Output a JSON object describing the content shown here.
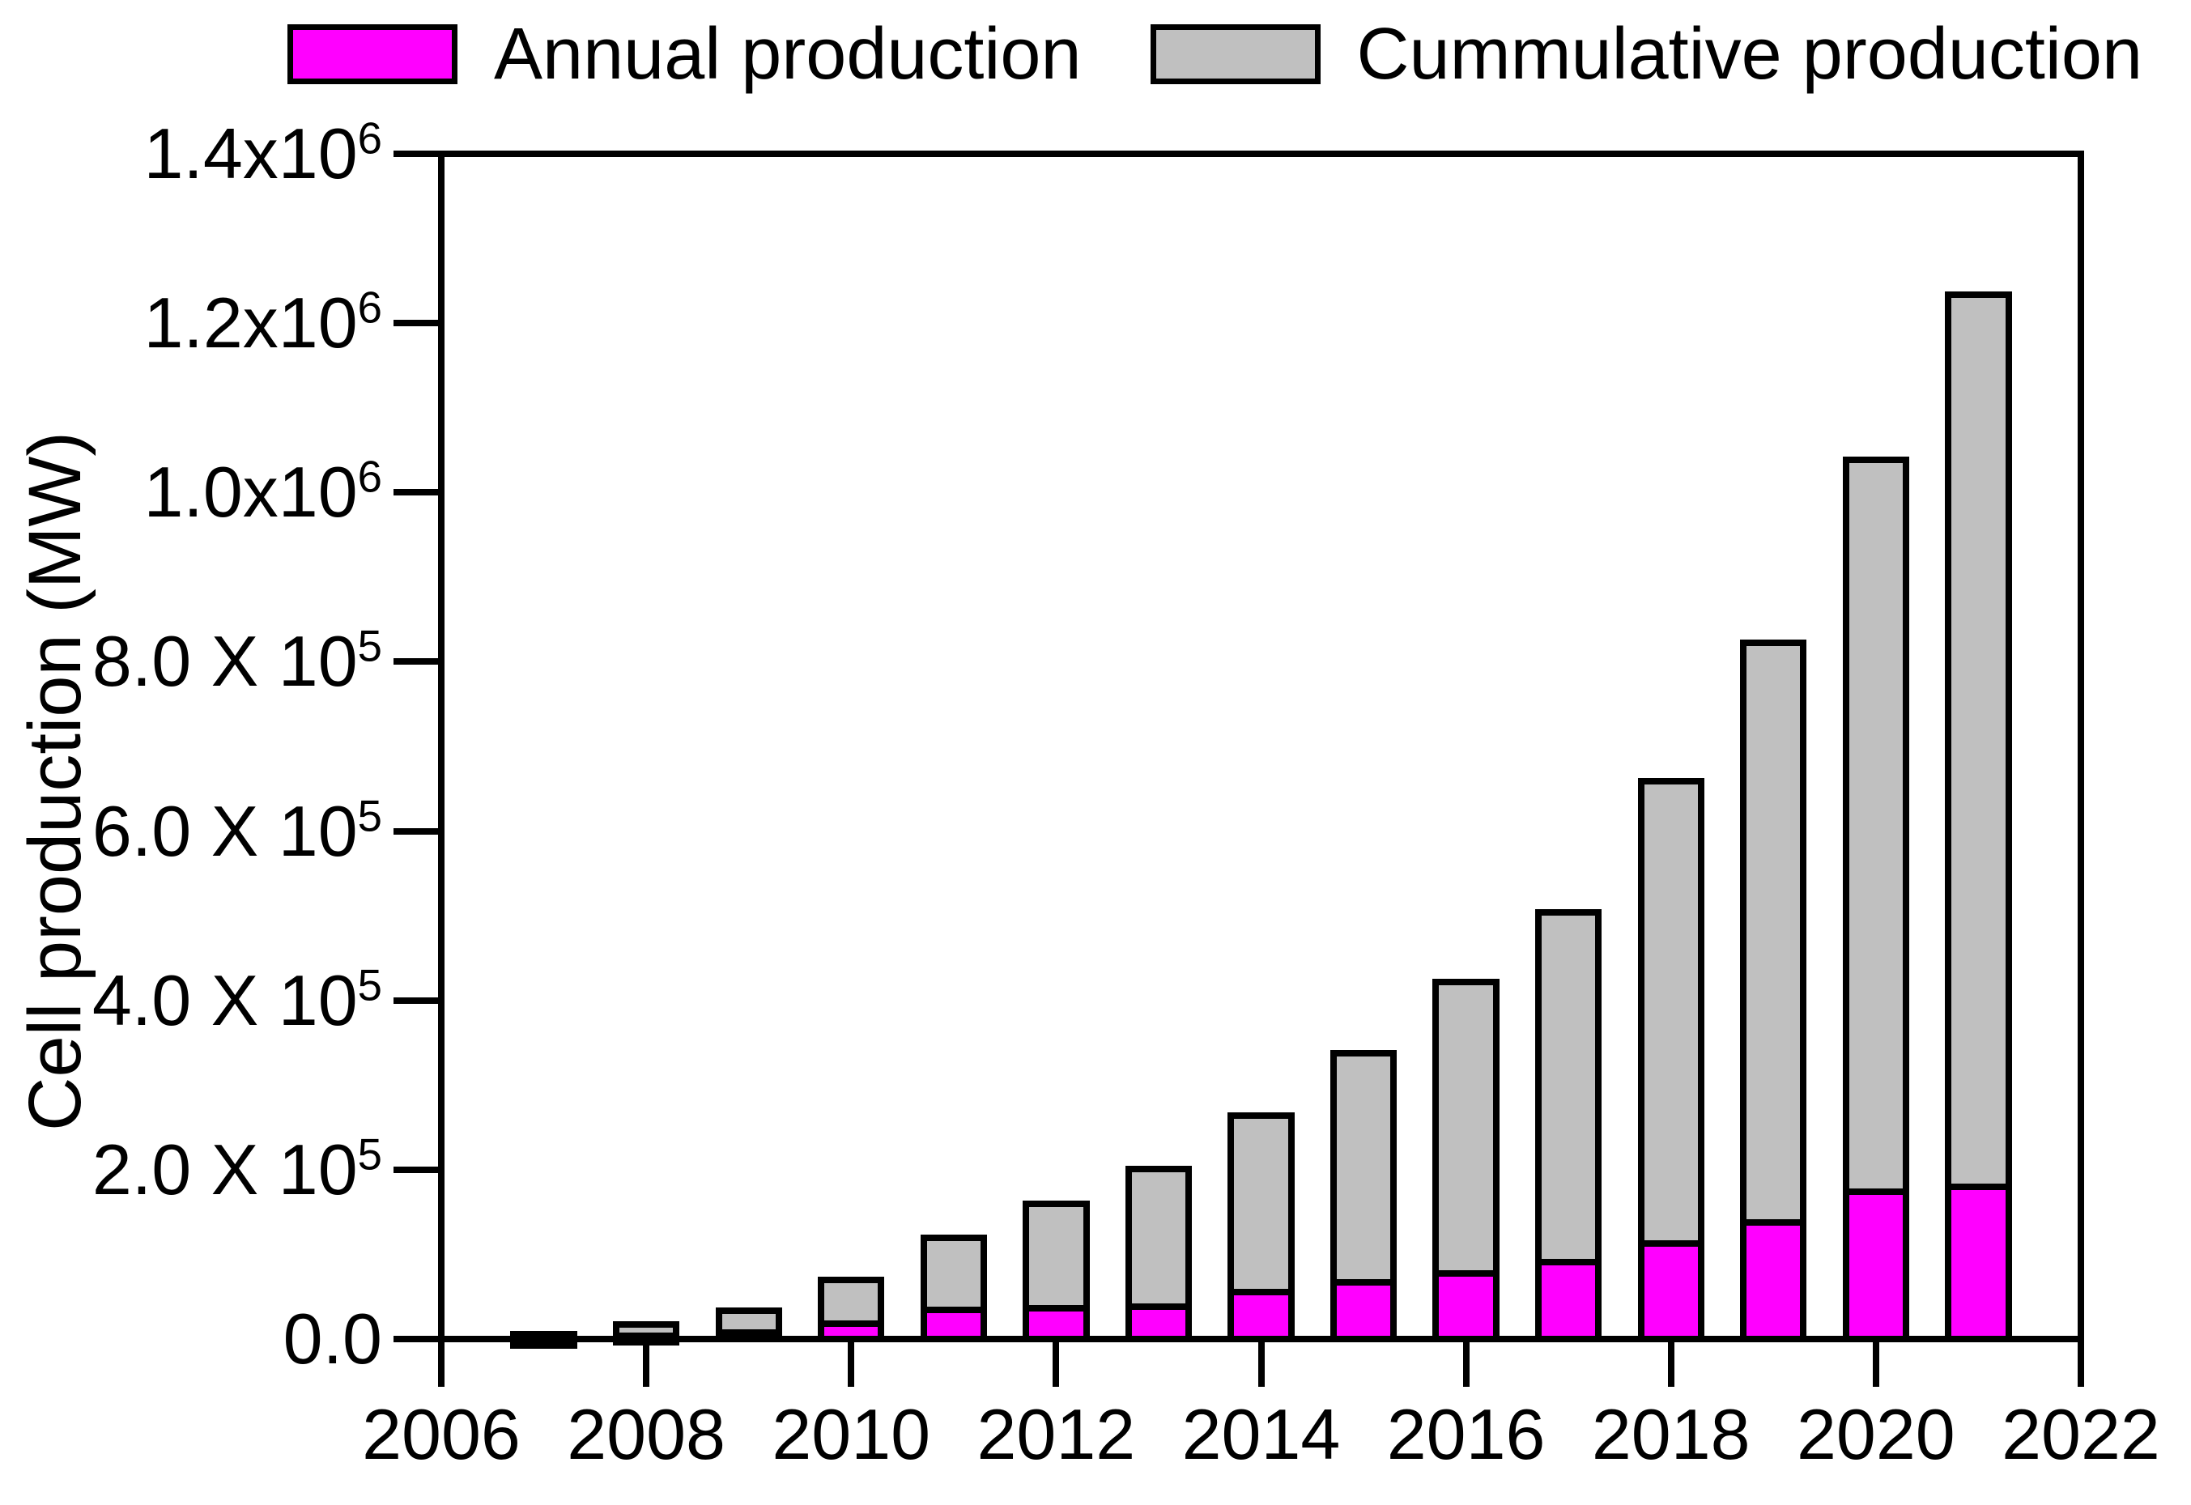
{
  "legend": {
    "items": [
      {
        "label": "Annual production",
        "color": "#FF00FF"
      },
      {
        "label": "Cummulative production",
        "color": "#C0C0C0"
      }
    ]
  },
  "y_axis": {
    "title": "Cell production (MW)",
    "ticks": [
      {
        "label": "1.4x10^6",
        "value": 1400000
      },
      {
        "label": "1.2x10^6",
        "value": 1200000
      },
      {
        "label": "1.0x10^6",
        "value": 1000000
      },
      {
        "label": "8.0 X 10^5",
        "value": 800000
      },
      {
        "label": "6.0 X 10^5",
        "value": 600000
      },
      {
        "label": "4.0 X 10^5",
        "value": 400000
      },
      {
        "label": "2.0 X 10^5",
        "value": 200000
      },
      {
        "label": "0.0",
        "value": 0
      }
    ]
  },
  "x_axis": {
    "ticks": [
      2006,
      2008,
      2010,
      2012,
      2014,
      2016,
      2018,
      2020,
      2022
    ]
  },
  "chart_data": {
    "type": "bar",
    "subtype": "overlaid",
    "title": "",
    "xlabel": "",
    "ylabel": "Cell production (MW)",
    "x": [
      2007,
      2008,
      2009,
      2010,
      2011,
      2012,
      2013,
      2014,
      2015,
      2016,
      2017,
      2018,
      2019,
      2020,
      2021
    ],
    "series": [
      {
        "name": "Annual production",
        "color": "#FF00FF",
        "values": [
          4000,
          7500,
          11500,
          22000,
          38000,
          40000,
          42000,
          59000,
          71000,
          81000,
          95000,
          117000,
          142000,
          178000,
          184000
        ]
      },
      {
        "name": "Cummulative production",
        "color": "#C0C0C0",
        "values": [
          10000,
          21000,
          37000,
          74000,
          123000,
          164000,
          205000,
          268000,
          341000,
          426000,
          508000,
          663000,
          826000,
          1042000,
          1237000
        ]
      }
    ],
    "ylim": [
      0,
      1400000
    ],
    "xlim": [
      2006,
      2022
    ],
    "bar_width_years": 0.65,
    "grid": false,
    "legend_position": "top",
    "note": "Gray cumulative bars drawn behind; magenta annual bars overlap their lower portion. All bars have black outlines."
  }
}
